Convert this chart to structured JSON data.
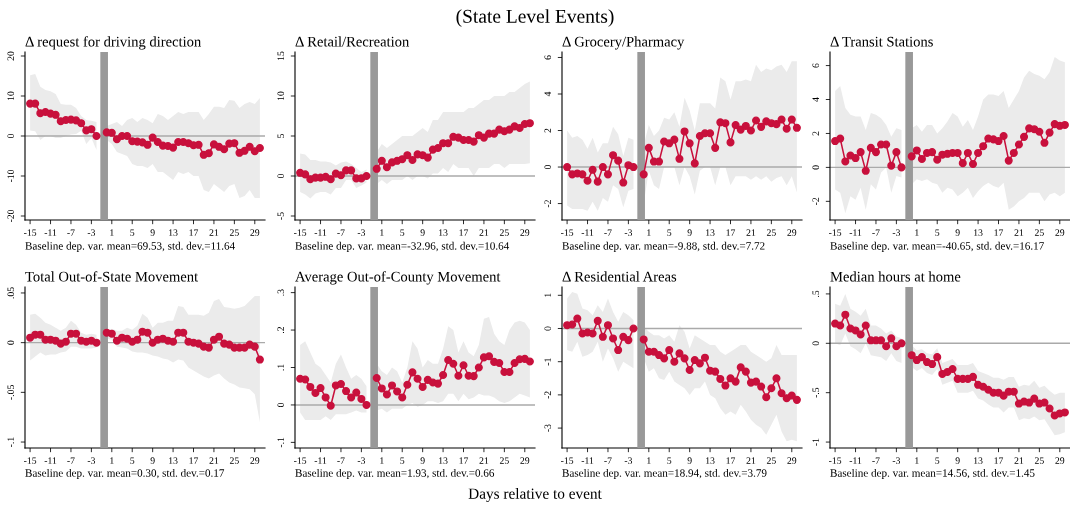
{
  "chart_data": [
    {
      "type": "other",
      "title": "(State Level Events)",
      "annotations": [
        "Days relative to event"
      ]
    },
    {
      "type": "line",
      "title": "Δ request for driving direction",
      "annotations": [
        "Baseline dep. var. mean=69.53, std. dev.=11.64"
      ],
      "x": [
        -15,
        -14,
        -13,
        -12,
        -11,
        -10,
        -9,
        -8,
        -7,
        -6,
        -5,
        -4,
        -3,
        -2,
        -1,
        0,
        1,
        2,
        3,
        4,
        5,
        6,
        7,
        8,
        9,
        10,
        11,
        12,
        13,
        14,
        15,
        16,
        17,
        18,
        19,
        20,
        21,
        22,
        23,
        24,
        25,
        26,
        27,
        28,
        29,
        30
      ],
      "xlim": [
        -16,
        31
      ],
      "xticks": [
        -15,
        -11,
        -7,
        -3,
        1,
        5,
        9,
        13,
        17,
        21,
        25,
        29
      ],
      "ylim": [
        -21,
        21
      ],
      "yticks": [
        -20,
        -10,
        0,
        10,
        20
      ],
      "marker": "circle",
      "line_style": "solid",
      "grid": false,
      "ref_lines": [
        {
          "axis": "x",
          "value": -0.5,
          "color": "#999999"
        },
        {
          "axis": "y",
          "value": 0,
          "color": "#aaaaaa"
        }
      ],
      "series": [
        {
          "color": "#c8103c",
          "values": [
            8.1,
            8.1,
            5.7,
            6.0,
            5.6,
            5.3,
            3.7,
            4.0,
            4.1,
            3.9,
            3.2,
            1.4,
            1.7,
            0,
            null,
            0.9,
            0.8,
            -0.8,
            0,
            0,
            -1.3,
            -1.4,
            -1.6,
            -2.2,
            -0.4,
            -1.5,
            -2.4,
            -2.5,
            -2.9,
            -1.5,
            -1.5,
            -1.8,
            -2.3,
            -2.2,
            -4.7,
            -4.3,
            -2.1,
            -2.7,
            -3.3,
            -1.9,
            -1.8,
            -4.2,
            -3.7,
            -2.7,
            -3.8,
            -3.0
          ],
          "upper": [
            15.2,
            15.5,
            12.3,
            11.5,
            11.2,
            10.5,
            8,
            7.8,
            7.8,
            7,
            5,
            4,
            3.8,
            3.5,
            null,
            2.5,
            3,
            3.5,
            2.5,
            4,
            4.5,
            3.5,
            4.5,
            4,
            3.2,
            5.5,
            5,
            4,
            5,
            6,
            5.5,
            6,
            6,
            6,
            4,
            5.5,
            7.3,
            7.3,
            7,
            9,
            8.8,
            7,
            8,
            8.5,
            8,
            9.5
          ],
          "lower": [
            1.4,
            1.2,
            -1,
            0,
            0,
            -0.5,
            -0.5,
            0,
            0.4,
            0.5,
            1.3,
            -2,
            -0.5,
            -3.5,
            null,
            -1,
            -2,
            -4,
            -4.5,
            -5,
            -7,
            -7.5,
            -7.5,
            -8,
            -7,
            -9,
            -9,
            -10,
            -11,
            -9,
            -9.5,
            -9,
            -10,
            -10,
            -13.5,
            -14,
            -12,
            -13,
            -14,
            -12.5,
            -12,
            -15.5,
            -15,
            -13.5,
            -15.5,
            -15.5
          ]
        }
      ]
    },
    {
      "type": "line",
      "title": "Δ Retail/Recreation",
      "annotations": [
        "Baseline dep. var. mean=-32.96, std. dev.=10.64"
      ],
      "x": [
        -15,
        -14,
        -13,
        -12,
        -11,
        -10,
        -9,
        -8,
        -7,
        -6,
        -5,
        -4,
        -3,
        -2,
        -1,
        0,
        1,
        2,
        3,
        4,
        5,
        6,
        7,
        8,
        9,
        10,
        11,
        12,
        13,
        14,
        15,
        16,
        17,
        18,
        19,
        20,
        21,
        22,
        23,
        24,
        25,
        26,
        27,
        28,
        29,
        30
      ],
      "xlim": [
        -16,
        31
      ],
      "xticks": [
        -15,
        -11,
        -7,
        -3,
        1,
        5,
        9,
        13,
        17,
        21,
        25,
        29
      ],
      "ylim": [
        -5.5,
        15.5
      ],
      "yticks": [
        -5,
        0,
        5,
        10,
        15
      ],
      "marker": "circle",
      "line_style": "solid",
      "grid": false,
      "ref_lines": [
        {
          "axis": "x",
          "value": -0.5,
          "color": "#999999"
        },
        {
          "axis": "y",
          "value": 0,
          "color": "#aaaaaa"
        }
      ],
      "series": [
        {
          "color": "#c8103c",
          "values": [
            0.4,
            0.2,
            -0.4,
            -0.2,
            -0.2,
            -0.1,
            -0.4,
            0.3,
            0.1,
            0.7,
            0.7,
            -0.3,
            -0.3,
            0,
            null,
            0.9,
            1.9,
            1.1,
            1.7,
            1.9,
            2.1,
            2.6,
            2.0,
            2.7,
            2.6,
            2.3,
            3.3,
            3.5,
            4.1,
            4.1,
            4.9,
            4.8,
            4.5,
            4.5,
            4.3,
            5.1,
            4.8,
            5.3,
            5.3,
            5.8,
            5.6,
            5.8,
            6.2,
            6.0,
            6.5,
            6.6
          ],
          "upper": [
            2.8,
            2.7,
            2,
            2,
            1.8,
            1.8,
            1.7,
            1.3,
            1.7,
            1.8,
            1.5,
            1,
            0.5,
            0.8,
            null,
            3,
            4,
            3.5,
            4,
            4.5,
            5,
            5,
            5,
            5.5,
            6,
            5.5,
            7,
            7,
            8,
            8,
            8,
            8,
            8,
            8.5,
            8.5,
            9,
            9.5,
            9.5,
            10,
            10,
            10,
            10.5,
            10.5,
            11,
            11.5,
            11.8
          ],
          "lower": [
            -2,
            -2.3,
            -2.8,
            -2.2,
            -2,
            -2,
            -2.3,
            -1.5,
            -1.5,
            -0.5,
            -0.5,
            -1.5,
            -1.2,
            -0.8,
            null,
            -1,
            -0.5,
            -1,
            -0.5,
            -0.5,
            -0.5,
            0,
            -0.5,
            0,
            0,
            -0.3,
            0.3,
            0.3,
            1,
            0.5,
            1.5,
            1,
            1,
            1,
            0,
            1,
            1,
            1,
            1.5,
            1.5,
            1,
            1.5,
            1.5,
            1.5,
            1.5,
            1.6
          ]
        }
      ]
    },
    {
      "type": "line",
      "title": "Δ Grocery/Pharmacy",
      "annotations": [
        "Baseline dep. var. mean=-9.88, std. dev.=7.72"
      ],
      "x": [
        -15,
        -14,
        -13,
        -12,
        -11,
        -10,
        -9,
        -8,
        -7,
        -6,
        -5,
        -4,
        -3,
        -2,
        -1,
        0,
        1,
        2,
        3,
        4,
        5,
        6,
        7,
        8,
        9,
        10,
        11,
        12,
        13,
        14,
        15,
        16,
        17,
        18,
        19,
        20,
        21,
        22,
        23,
        24,
        25,
        26,
        27,
        28,
        29,
        30
      ],
      "xlim": [
        -16,
        31
      ],
      "xticks": [
        -15,
        -11,
        -7,
        -3,
        1,
        5,
        9,
        13,
        17,
        21,
        25,
        29
      ],
      "ylim": [
        -2.9,
        6.3
      ],
      "yticks": [
        -2,
        0,
        2,
        4,
        6
      ],
      "marker": "circle",
      "line_style": "solid",
      "grid": false,
      "ref_lines": [
        {
          "axis": "x",
          "value": -0.5,
          "color": "#999999"
        },
        {
          "axis": "y",
          "value": 0,
          "color": "#aaaaaa"
        }
      ],
      "series": [
        {
          "color": "#c8103c",
          "values": [
            0,
            -0.4,
            -0.35,
            -0.4,
            -0.75,
            -0.15,
            -0.8,
            0,
            -0.4,
            0.65,
            0.35,
            -0.85,
            0.1,
            0,
            null,
            -0.4,
            1.05,
            0.3,
            0.3,
            1.4,
            1.3,
            1.5,
            0.45,
            1.95,
            1.3,
            0.2,
            1.7,
            1.85,
            1.85,
            1.05,
            2.45,
            2.4,
            1.35,
            2.3,
            2.05,
            2.25,
            2.0,
            2.55,
            2.2,
            2.5,
            2.4,
            2.35,
            2.6,
            2.1,
            2.6,
            2.15
          ],
          "upper": [
            2,
            1.6,
            1.7,
            1.5,
            1.0,
            1.6,
            0.8,
            1.3,
            1.3,
            2.2,
            1.8,
            0.6,
            1.6,
            1.5,
            null,
            1.2,
            2.3,
            1.7,
            2,
            2.7,
            2.6,
            3,
            2.2,
            3.8,
            3.1,
            2,
            3.5,
            3.5,
            3.5,
            3.2,
            4.9,
            4.7,
            3.7,
            4.7,
            4.7,
            4.8,
            4.7,
            5.6,
            5.2,
            5.4,
            5.3,
            5.5,
            5.6,
            5.2,
            5.8,
            5.8
          ],
          "lower": [
            -2.1,
            -2.3,
            -2.3,
            -2.3,
            -2.4,
            -1.9,
            -2.4,
            -1.7,
            -1.9,
            -1,
            -1.2,
            -2.2,
            -1.3,
            -1.2,
            null,
            -2,
            -0.2,
            -1,
            -1.2,
            0,
            0,
            0,
            -1,
            0,
            -0.5,
            -1.5,
            -0.2,
            0,
            0,
            -1,
            0,
            0,
            -1,
            -0.5,
            -0.5,
            -0.5,
            -0.7,
            -0.5,
            -0.7,
            -0.5,
            -0.8,
            -0.6,
            -0.5,
            -1,
            -0.5,
            -1.4
          ]
        }
      ]
    },
    {
      "type": "line",
      "title": "Δ Transit Stations",
      "annotations": [
        "Baseline dep. var. mean=-40.65, std. dev.=16.17"
      ],
      "x": [
        -15,
        -14,
        -13,
        -12,
        -11,
        -10,
        -9,
        -8,
        -7,
        -6,
        -5,
        -4,
        -3,
        -2,
        -1,
        0,
        1,
        2,
        3,
        4,
        5,
        6,
        7,
        8,
        9,
        10,
        11,
        12,
        13,
        14,
        15,
        16,
        17,
        18,
        19,
        20,
        21,
        22,
        23,
        24,
        25,
        26,
        27,
        28,
        29,
        30
      ],
      "xlim": [
        -16,
        31
      ],
      "xticks": [
        -15,
        -11,
        -7,
        -3,
        1,
        5,
        9,
        13,
        17,
        21,
        25,
        29
      ],
      "ylim": [
        -3.1,
        6.8
      ],
      "yticks": [
        -2,
        0,
        2,
        4,
        6
      ],
      "marker": "circle",
      "line_style": "solid",
      "grid": false,
      "ref_lines": [
        {
          "axis": "x",
          "value": -0.5,
          "color": "#999999"
        },
        {
          "axis": "y",
          "value": 0,
          "color": "#aaaaaa"
        }
      ],
      "series": [
        {
          "color": "#c8103c",
          "values": [
            1.55,
            1.7,
            0.35,
            0.7,
            0.55,
            0.9,
            -0.2,
            1.15,
            0.9,
            1.35,
            1.35,
            0.1,
            0.9,
            0,
            null,
            0.65,
            1.0,
            0.5,
            0.85,
            0.9,
            0.45,
            0.75,
            0.8,
            0.85,
            0.85,
            0.25,
            0.85,
            0.2,
            0.85,
            1.25,
            1.7,
            1.65,
            1.55,
            1.85,
            0.4,
            0.85,
            1.35,
            1.8,
            2.3,
            2.25,
            2.1,
            1.45,
            2.05,
            2.55,
            2.45,
            2.5
          ],
          "upper": [
            4.5,
            4.8,
            3.5,
            3.1,
            3.0,
            3.0,
            2.2,
            3.2,
            3.1,
            2.9,
            2.5,
            1.8,
            2.3,
            2.2,
            null,
            2.3,
            2.5,
            2.1,
            2.5,
            2.5,
            2,
            2.3,
            2.7,
            3.2,
            3,
            2.4,
            2.8,
            2.2,
            3,
            4,
            4.3,
            4.3,
            4.2,
            4.5,
            3.5,
            4,
            4.5,
            5.3,
            5.7,
            5.5,
            5.4,
            5.2,
            5.6,
            6.5,
            6.3,
            6.2
          ],
          "lower": [
            -1.3,
            -1.5,
            -2.7,
            -1.7,
            -1.9,
            -1.2,
            -2.5,
            -1,
            -1.3,
            -0.3,
            0,
            -1.5,
            -0.5,
            -0.6,
            null,
            -1,
            -0.7,
            -0.8,
            -0.7,
            -0.9,
            -1,
            -1.5,
            -1.2,
            -1.3,
            -1.7,
            -1.5,
            -1.2,
            -1.8,
            -1.4,
            -1.1,
            -0.9,
            -1.1,
            -1.2,
            -0.9,
            -2.5,
            -2.3,
            -2,
            -1.8,
            -1.5,
            -1.5,
            -1.5,
            -2,
            -1.6,
            -1.5,
            -1.7,
            -1.5
          ]
        }
      ]
    },
    {
      "type": "line",
      "title": "Total Out-of-State Movement",
      "annotations": [
        "Baseline dep. var. mean=0.30, std. dev.=0.17"
      ],
      "x": [
        -15,
        -14,
        -13,
        -12,
        -11,
        -10,
        -9,
        -8,
        -7,
        -6,
        -5,
        -4,
        -3,
        -2,
        -1,
        0,
        1,
        2,
        3,
        4,
        5,
        6,
        7,
        8,
        9,
        10,
        11,
        12,
        13,
        14,
        15,
        16,
        17,
        18,
        19,
        20,
        21,
        22,
        23,
        24,
        25,
        26,
        27,
        28,
        29,
        30
      ],
      "xlim": [
        -16,
        31
      ],
      "xticks": [
        -15,
        -11,
        -7,
        -3,
        1,
        5,
        9,
        13,
        17,
        21,
        25,
        29
      ],
      "ylim": [
        -0.106,
        0.056
      ],
      "yticks": [
        {
          "value": -0.1,
          "label": "-.1"
        },
        {
          "value": -0.05,
          "label": "-.05"
        },
        0,
        {
          "value": 0.05,
          "label": ".05"
        }
      ],
      "marker": "circle",
      "line_style": "solid",
      "grid": false,
      "ref_lines": [
        {
          "axis": "x",
          "value": -0.5,
          "color": "#999999"
        },
        {
          "axis": "y",
          "value": 0,
          "color": "#aaaaaa"
        }
      ],
      "series": [
        {
          "color": "#c8103c",
          "values": [
            0.005,
            0.008,
            0.008,
            0.003,
            0.003,
            0.002,
            -0.001,
            0.001,
            0.009,
            0.009,
            0.002,
            0.001,
            0.002,
            0,
            null,
            0.01,
            0.009,
            0.002,
            0.005,
            0.004,
            0.001,
            0.003,
            0.011,
            0.01,
            0,
            0.003,
            0.004,
            0.002,
            0.001,
            0.01,
            0.01,
            0.001,
            0,
            -0.001,
            -0.004,
            -0.005,
            0.003,
            0.006,
            -0.001,
            -0.002,
            -0.005,
            -0.005,
            -0.005,
            -0.002,
            -0.004,
            -0.017
          ],
          "upper": [
            0.028,
            0.029,
            0.025,
            0.02,
            0.018,
            0.015,
            0.012,
            0.015,
            0.022,
            0.018,
            0.01,
            0.008,
            0.009,
            0.008,
            null,
            0.012,
            0.014,
            0.012,
            0.012,
            0.015,
            0.013,
            0.017,
            0.029,
            0.025,
            0.015,
            0.02,
            0.02,
            0.022,
            0.022,
            0.037,
            0.036,
            0.028,
            0.028,
            0.028,
            0.027,
            0.03,
            0.042,
            0.044,
            0.036,
            0.035,
            0.034,
            0.035,
            0.037,
            0.042,
            0.047,
            0.047
          ],
          "lower": [
            -0.018,
            -0.014,
            -0.01,
            -0.013,
            -0.012,
            -0.012,
            -0.01,
            -0.009,
            -0.004,
            -0.004,
            -0.006,
            -0.006,
            -0.006,
            -0.005,
            null,
            0.004,
            0.003,
            -0.004,
            -0.005,
            -0.006,
            -0.009,
            -0.01,
            -0.01,
            -0.011,
            -0.013,
            -0.014,
            -0.016,
            -0.017,
            -0.02,
            -0.017,
            -0.018,
            -0.025,
            -0.028,
            -0.031,
            -0.034,
            -0.036,
            -0.033,
            -0.031,
            -0.036,
            -0.04,
            -0.042,
            -0.045,
            -0.046,
            -0.047,
            -0.052,
            -0.08
          ]
        }
      ]
    },
    {
      "type": "line",
      "title": "Average Out-of-County Movement",
      "annotations": [
        "Baseline dep. var. mean=1.93, std. dev.=0.66"
      ],
      "x": [
        -15,
        -14,
        -13,
        -12,
        -11,
        -10,
        -9,
        -8,
        -7,
        -6,
        -5,
        -4,
        -3,
        -2,
        -1,
        0,
        1,
        2,
        3,
        4,
        5,
        6,
        7,
        8,
        9,
        10,
        11,
        12,
        13,
        14,
        15,
        16,
        17,
        18,
        19,
        20,
        21,
        22,
        23,
        24,
        25,
        26,
        27,
        28,
        29,
        30
      ],
      "xlim": [
        -16,
        31
      ],
      "xticks": [
        -15,
        -11,
        -7,
        -3,
        1,
        5,
        9,
        13,
        17,
        21,
        25,
        29
      ],
      "ylim": [
        -0.115,
        0.315
      ],
      "yticks": [
        {
          "value": -0.1,
          "label": "-.1"
        },
        0,
        {
          "value": 0.1,
          "label": ".1"
        },
        {
          "value": 0.2,
          "label": ".2"
        },
        {
          "value": 0.3,
          "label": ".3"
        }
      ],
      "marker": "circle",
      "line_style": "solid",
      "grid": false,
      "ref_lines": [
        {
          "axis": "x",
          "value": -0.5,
          "color": "#999999"
        },
        {
          "axis": "y",
          "value": 0,
          "color": "#aaaaaa"
        }
      ],
      "series": [
        {
          "color": "#c8103c",
          "values": [
            0.07,
            0.068,
            0.048,
            0.032,
            0.045,
            0.02,
            -0.002,
            0.052,
            0.056,
            0.037,
            0.02,
            0.033,
            0.016,
            0,
            null,
            0.072,
            0.044,
            0.028,
            0.052,
            0.036,
            0.02,
            0.054,
            0.087,
            0.07,
            0.048,
            0.067,
            0.06,
            0.057,
            0.08,
            0.12,
            0.11,
            0.078,
            0.106,
            0.078,
            0.077,
            0.1,
            0.127,
            0.13,
            0.115,
            0.112,
            0.088,
            0.088,
            0.112,
            0.122,
            0.123,
            0.116
          ],
          "upper": [
            0.16,
            0.17,
            0.14,
            0.11,
            0.1,
            0.08,
            0.06,
            0.11,
            0.135,
            0.1,
            0.07,
            0.08,
            0.07,
            0.05,
            null,
            0.11,
            0.09,
            0.08,
            0.1,
            0.09,
            0.06,
            0.1,
            0.17,
            0.15,
            0.1,
            0.12,
            0.11,
            0.11,
            0.15,
            0.21,
            0.2,
            0.14,
            0.17,
            0.14,
            0.13,
            0.16,
            0.23,
            0.235,
            0.19,
            0.17,
            0.16,
            0.2,
            0.22,
            0.225,
            0.22,
            0.2
          ],
          "lower": [
            -0.02,
            -0.04,
            -0.04,
            -0.04,
            -0.04,
            -0.03,
            -0.04,
            -0.025,
            -0.025,
            -0.025,
            -0.02,
            -0.015,
            -0.02,
            -0.02,
            null,
            -0.015,
            -0.01,
            -0.02,
            -0.01,
            -0.01,
            -0.01,
            0,
            0.005,
            -0.005,
            0,
            0.01,
            0.01,
            0.005,
            0.01,
            0.03,
            0.03,
            0.01,
            0.03,
            0.015,
            0.02,
            0.03,
            0.025,
            0.025,
            0.02,
            0.01,
            0.005,
            0.01,
            0.02,
            0.03,
            0.025,
            0.02
          ]
        }
      ]
    },
    {
      "type": "line",
      "title": "Δ Residential Areas",
      "annotations": [
        "Baseline dep. var. mean=18.94, std. dev.=3.79"
      ],
      "x": [
        -15,
        -14,
        -13,
        -12,
        -11,
        -10,
        -9,
        -8,
        -7,
        -6,
        -5,
        -4,
        -3,
        -2,
        -1,
        0,
        1,
        2,
        3,
        4,
        5,
        6,
        7,
        8,
        9,
        10,
        11,
        12,
        13,
        14,
        15,
        16,
        17,
        18,
        19,
        20,
        21,
        22,
        23,
        24,
        25,
        26,
        27,
        28,
        29,
        30
      ],
      "xlim": [
        -16,
        31
      ],
      "xticks": [
        -15,
        -11,
        -7,
        -3,
        1,
        5,
        9,
        13,
        17,
        21,
        25,
        29
      ],
      "ylim": [
        -3.6,
        1.25
      ],
      "yticks": [
        -3,
        -2,
        -1,
        0,
        1
      ],
      "marker": "circle",
      "line_style": "solid",
      "grid": false,
      "ref_lines": [
        {
          "axis": "x",
          "value": -0.5,
          "color": "#999999"
        },
        {
          "axis": "y",
          "value": 0,
          "color": "#aaaaaa"
        }
      ],
      "series": [
        {
          "color": "#c8103c",
          "values": [
            0.1,
            0.12,
            0.3,
            -0.15,
            -0.12,
            -0.15,
            0.23,
            -0.25,
            0.1,
            -0.3,
            -0.65,
            -0.25,
            -0.35,
            0,
            null,
            -0.33,
            -0.7,
            -0.7,
            -0.8,
            -0.9,
            -0.65,
            -1,
            -0.75,
            -0.9,
            -1.25,
            -0.95,
            -1.05,
            -0.88,
            -1.27,
            -1.3,
            -1.52,
            -1.72,
            -1.5,
            -1.6,
            -1.17,
            -1.3,
            -1.63,
            -1.6,
            -1.75,
            -2.07,
            -1.8,
            -1.5,
            -1.95,
            -2.1,
            -2.02,
            -2.15
          ],
          "upper": [
            0.9,
            1.1,
            1.05,
            0.6,
            0.55,
            0.4,
            0.7,
            0.5,
            0.9,
            0.5,
            0.2,
            0.5,
            0.4,
            0.25,
            null,
            0.05,
            -0.1,
            -0.2,
            -0.2,
            -0.3,
            -0.2,
            -0.4,
            0.1,
            -0.1,
            -0.6,
            -0.2,
            -0.3,
            -0.4,
            -0.5,
            -0.5,
            -0.7,
            -0.8,
            -0.7,
            -0.6,
            -0.5,
            -0.5,
            -0.7,
            -0.8,
            -0.9,
            -1,
            -0.9,
            -0.5,
            -0.8,
            -0.8,
            -0.8,
            -0.8
          ],
          "lower": [
            -0.65,
            -0.7,
            -0.4,
            -0.85,
            -0.8,
            -0.7,
            -0.4,
            -1,
            -0.6,
            -0.9,
            -1.3,
            -1,
            -1.1,
            -1.2,
            null,
            -0.9,
            -1.3,
            -1.2,
            -1.5,
            -1.55,
            -1.3,
            -1.6,
            -1.7,
            -1.8,
            -2,
            -1.8,
            -1.8,
            -1.6,
            -2,
            -2.1,
            -2.4,
            -2.6,
            -2.5,
            -2.6,
            -2.3,
            -2.5,
            -2.75,
            -2.9,
            -3.0,
            -3.2,
            -2.9,
            -2.6,
            -3.1,
            -3.4,
            -3.35,
            -3.4
          ]
        }
      ]
    },
    {
      "type": "line",
      "title": "Median hours at home",
      "annotations": [
        "Baseline dep. var. mean=14.56, std. dev.=1.45"
      ],
      "x": [
        -15,
        -14,
        -13,
        -12,
        -11,
        -10,
        -9,
        -8,
        -7,
        -6,
        -5,
        -4,
        -3,
        -2,
        -1,
        0,
        1,
        2,
        3,
        4,
        5,
        6,
        7,
        8,
        9,
        10,
        11,
        12,
        13,
        14,
        15,
        16,
        17,
        18,
        19,
        20,
        21,
        22,
        23,
        24,
        25,
        26,
        27,
        28,
        29,
        30
      ],
      "xlim": [
        -16,
        31
      ],
      "xticks": [
        -15,
        -11,
        -7,
        -3,
        1,
        5,
        9,
        13,
        17,
        21,
        25,
        29
      ],
      "ylim": [
        -1.06,
        0.57
      ],
      "yticks": [
        {
          "value": -1,
          "label": "-1"
        },
        {
          "value": -0.5,
          "label": "-.5"
        },
        0,
        {
          "value": 0.5,
          "label": ".5"
        }
      ],
      "marker": "circle",
      "line_style": "solid",
      "grid": false,
      "ref_lines": [
        {
          "axis": "x",
          "value": -0.5,
          "color": "#999999"
        },
        {
          "axis": "y",
          "value": 0,
          "color": "#aaaaaa"
        }
      ],
      "series": [
        {
          "color": "#c8103c",
          "values": [
            0.2,
            0.18,
            0.29,
            0.15,
            0.13,
            0.09,
            0.18,
            0.03,
            0.03,
            0.03,
            -0.03,
            0.05,
            -0.03,
            0,
            null,
            -0.12,
            -0.17,
            -0.14,
            -0.19,
            -0.21,
            -0.14,
            -0.31,
            -0.29,
            -0.26,
            -0.36,
            -0.36,
            -0.36,
            -0.34,
            -0.42,
            -0.44,
            -0.47,
            -0.5,
            -0.5,
            -0.53,
            -0.49,
            -0.49,
            -0.61,
            -0.59,
            -0.6,
            -0.56,
            -0.61,
            -0.6,
            -0.66,
            -0.73,
            -0.71,
            -0.7
          ],
          "upper": [
            0.4,
            0.38,
            0.5,
            0.35,
            0.32,
            0.28,
            0.35,
            0.18,
            0.18,
            0.15,
            0.1,
            0.13,
            0.07,
            0.05,
            null,
            -0.02,
            -0.07,
            -0.06,
            -0.1,
            -0.11,
            -0.05,
            -0.2,
            -0.18,
            -0.16,
            -0.22,
            -0.22,
            -0.22,
            -0.2,
            -0.28,
            -0.3,
            -0.32,
            -0.35,
            -0.35,
            -0.37,
            -0.34,
            -0.34,
            -0.44,
            -0.42,
            -0.43,
            -0.38,
            -0.45,
            -0.43,
            -0.48,
            -0.52,
            -0.5,
            -0.5
          ],
          "lower": [
            0,
            -0.02,
            0.1,
            -0.03,
            -0.06,
            -0.1,
            0,
            -0.12,
            -0.13,
            -0.14,
            -0.18,
            -0.1,
            -0.18,
            -0.2,
            null,
            -0.24,
            -0.28,
            -0.25,
            -0.3,
            -0.32,
            -0.26,
            -0.42,
            -0.4,
            -0.38,
            -0.5,
            -0.5,
            -0.5,
            -0.48,
            -0.56,
            -0.58,
            -0.62,
            -0.65,
            -0.65,
            -0.7,
            -0.65,
            -0.65,
            -0.78,
            -0.76,
            -0.77,
            -0.74,
            -0.78,
            -0.77,
            -0.85,
            -0.93,
            -0.92,
            -0.9
          ]
        }
      ]
    }
  ]
}
